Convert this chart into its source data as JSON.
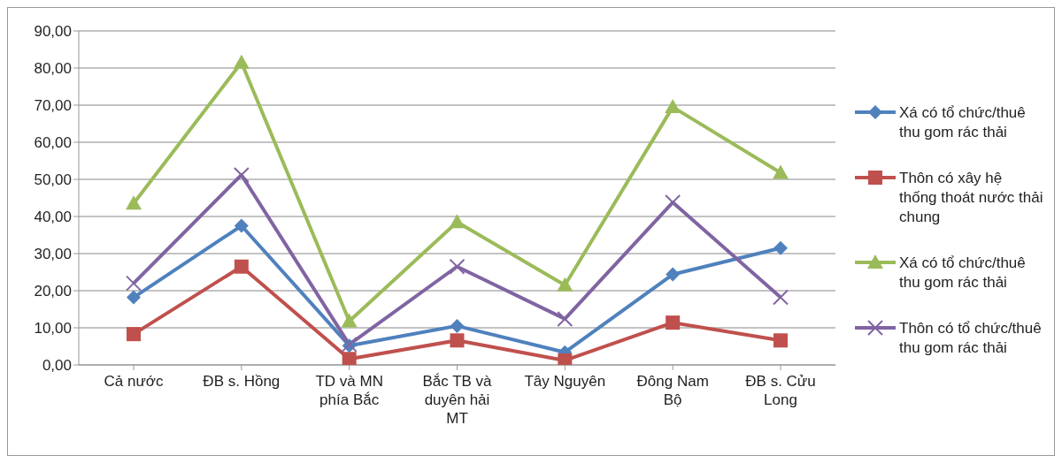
{
  "chart_data": {
    "type": "line",
    "categories": [
      "Cả nước",
      "ĐB s. Hồng",
      "TD và MN phía Bắc",
      "Bắc TB và duyên hải MT",
      "Tây Nguyên",
      "Đông Nam Bộ",
      "ĐB s. Cửu Long"
    ],
    "series": [
      {
        "name": "Xá có tổ chức/thuê thu gom rác thải",
        "color": "#4f81bd",
        "marker": "diamond",
        "values": [
          18.2,
          37.5,
          5.2,
          10.5,
          3.4,
          24.4,
          31.5
        ]
      },
      {
        "name": "Thôn có xây hệ thống thoát nước thải chung",
        "color": "#c0504d",
        "marker": "square",
        "values": [
          8.3,
          26.5,
          1.6,
          6.6,
          1.2,
          11.4,
          6.6
        ]
      },
      {
        "name": "Xá có tổ chức/thuê thu gom rác thải",
        "color": "#9bbb59",
        "marker": "triangle",
        "values": [
          43.5,
          81.5,
          11.8,
          38.5,
          21.5,
          69.5,
          51.8
        ]
      },
      {
        "name": "Thôn có tổ chức/thuê thu gom rác thải",
        "color": "#8064a2",
        "marker": "cross",
        "values": [
          22.0,
          51.2,
          5.5,
          26.5,
          12.4,
          43.8,
          18.2
        ]
      }
    ],
    "ylim": [
      0,
      90
    ],
    "yticks": [
      {
        "value": 0,
        "label": "0,00"
      },
      {
        "value": 10,
        "label": "10,00"
      },
      {
        "value": 20,
        "label": "20,00"
      },
      {
        "value": 30,
        "label": "30,00"
      },
      {
        "value": 40,
        "label": "40,00"
      },
      {
        "value": 50,
        "label": "50,00"
      },
      {
        "value": 60,
        "label": "60,00"
      },
      {
        "value": 70,
        "label": "70,00"
      },
      {
        "value": 80,
        "label": "80,00"
      },
      {
        "value": 90,
        "label": "90,00"
      }
    ],
    "grid": "y",
    "legend": "right"
  }
}
